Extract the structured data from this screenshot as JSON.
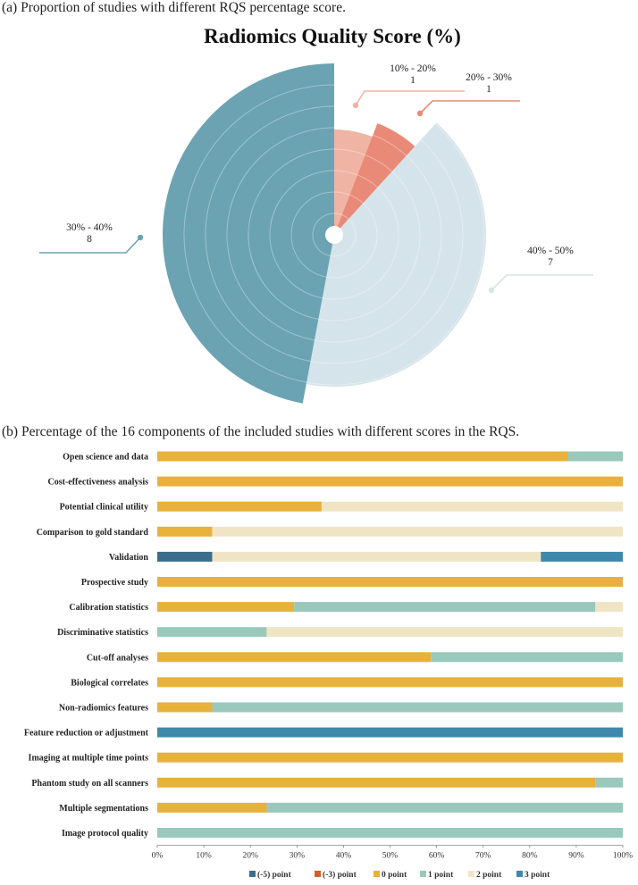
{
  "chart_data": [
    {
      "type": "pie",
      "caption": "(a) Proportion of studies with different RQS percentage score.",
      "title": "Radiomics Quality Score (%)",
      "slices": [
        {
          "label": "10% - 20%",
          "value": 1,
          "color": "#f0b4a4"
        },
        {
          "label": "20% - 30%",
          "value": 1,
          "color": "#e98a78"
        },
        {
          "label": "40% - 50%",
          "value": 7,
          "color": "#d5e4ea"
        },
        {
          "label": "30% - 40%",
          "value": 8,
          "color": "#6ba3b2"
        }
      ]
    },
    {
      "type": "bar",
      "stacked": true,
      "orientation": "horizontal",
      "caption": "(b) Percentage of the 16 components of the included studies with different scores in the RQS.",
      "xlim": [
        0,
        100
      ],
      "xticks": [
        "0%",
        "10%",
        "20%",
        "30%",
        "40%",
        "50%",
        "60%",
        "70%",
        "80%",
        "90%",
        "100%"
      ],
      "legend_position": "bottom",
      "series": [
        {
          "name": "(-5) point",
          "color": "#3b6d8c"
        },
        {
          "name": "(-3) point",
          "color": "#d35f26"
        },
        {
          "name": "0 point",
          "color": "#e8b13c"
        },
        {
          "name": "1 point",
          "color": "#98c9bb"
        },
        {
          "name": "2 point",
          "color": "#efe5c4"
        },
        {
          "name": "3 point",
          "color": "#3e88ab"
        }
      ],
      "rows": [
        {
          "label": "Open science and data",
          "values": [
            0,
            0,
            88.2,
            11.8,
            0,
            0
          ]
        },
        {
          "label": "Cost-effectiveness analysis",
          "values": [
            0,
            0,
            100,
            0,
            0,
            0
          ]
        },
        {
          "label": "Potential clinical  utility",
          "values": [
            0,
            0,
            35.3,
            0,
            64.7,
            0
          ]
        },
        {
          "label": "Comparison to gold standard",
          "values": [
            0,
            0,
            11.8,
            0,
            88.2,
            0
          ]
        },
        {
          "label": "Validation",
          "values": [
            11.8,
            0,
            0,
            0,
            70.6,
            17.6
          ]
        },
        {
          "label": "Prospective study",
          "values": [
            0,
            0,
            100,
            0,
            0,
            0
          ]
        },
        {
          "label": "Calibration statistics",
          "values": [
            0,
            0,
            29.4,
            64.7,
            5.9,
            0
          ]
        },
        {
          "label": "Discriminative statistics",
          "values": [
            0,
            0,
            0,
            23.5,
            76.5,
            0
          ]
        },
        {
          "label": "Cut-off analyses",
          "values": [
            0,
            0,
            58.8,
            41.2,
            0,
            0
          ]
        },
        {
          "label": "Biological correlates",
          "values": [
            0,
            0,
            100,
            0,
            0,
            0
          ]
        },
        {
          "label": "Non-radiomics features",
          "values": [
            0,
            0,
            11.8,
            88.2,
            0,
            0
          ]
        },
        {
          "label": "Feature reduction or adjustment",
          "values": [
            0,
            0,
            0,
            0,
            0,
            100
          ]
        },
        {
          "label": "Imaging at multiple time points",
          "values": [
            0,
            0,
            100,
            0,
            0,
            0
          ]
        },
        {
          "label": "Phantom study on all scanners",
          "values": [
            0,
            0,
            94.1,
            5.9,
            0,
            0
          ]
        },
        {
          "label": "Multiple segmentations",
          "values": [
            0,
            0,
            23.5,
            76.5,
            0,
            0
          ]
        },
        {
          "label": "Image protocol quality",
          "values": [
            0,
            0,
            0,
            100,
            0,
            0
          ]
        }
      ]
    }
  ]
}
